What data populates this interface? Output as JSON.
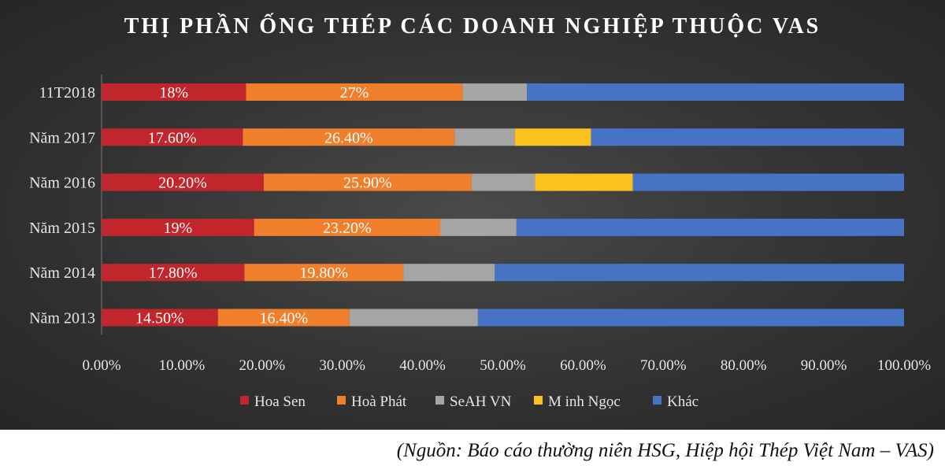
{
  "chart_data": {
    "type": "bar",
    "orientation": "horizontal",
    "stacked": "percent",
    "title": "THỊ PHẦN ỐNG THÉP CÁC DOANH NGHIỆP THUỘC VAS",
    "categories": [
      "11T2018",
      "Năm 2017",
      "Năm 2016",
      "Năm 2015",
      "Năm 2014",
      "Năm 2013"
    ],
    "xlim": [
      0,
      100
    ],
    "x_ticks": [
      "0.00%",
      "10.00%",
      "20.00%",
      "30.00%",
      "40.00%",
      "50.00%",
      "60.00%",
      "70.00%",
      "80.00%",
      "90.00%",
      "100.00%"
    ],
    "grid": false,
    "legend": "bottom",
    "series": [
      {
        "name": "Hoa Sen",
        "color": "#c0262c",
        "values": [
          18,
          17.6,
          20.2,
          19,
          17.8,
          14.5
        ],
        "labels": [
          "18%",
          "17.60%",
          "20.20%",
          "19%",
          "17.80%",
          "14.50%"
        ]
      },
      {
        "name": "Hoà Phát",
        "color": "#f07f2c",
        "values": [
          27,
          26.4,
          25.9,
          23.2,
          19.8,
          16.4
        ],
        "labels": [
          "27%",
          "26.40%",
          "25.90%",
          "23.20%",
          "19.80%",
          "16.40%"
        ]
      },
      {
        "name": "SeAH VN",
        "color": "#a5a5a5",
        "values": [
          8,
          7.5,
          7.9,
          9.5,
          11.4,
          16
        ],
        "labels": [
          "",
          "",
          "",
          "",
          "",
          ""
        ]
      },
      {
        "name": "M inh Ngọc",
        "color": "#fbc21f",
        "values": [
          0,
          9.5,
          12.2,
          0,
          0,
          0
        ],
        "labels": [
          "",
          "",
          "",
          "",
          "",
          ""
        ]
      },
      {
        "name": "Khác",
        "color": "#4773c5",
        "values": [
          47,
          39,
          33.8,
          48.3,
          51,
          53.1
        ],
        "labels": [
          "",
          "",
          "",
          "",
          "",
          ""
        ]
      }
    ]
  },
  "source": "(Nguồn: Báo cáo thường niên HSG, Hiệp hội Thép Việt Nam – VAS)"
}
